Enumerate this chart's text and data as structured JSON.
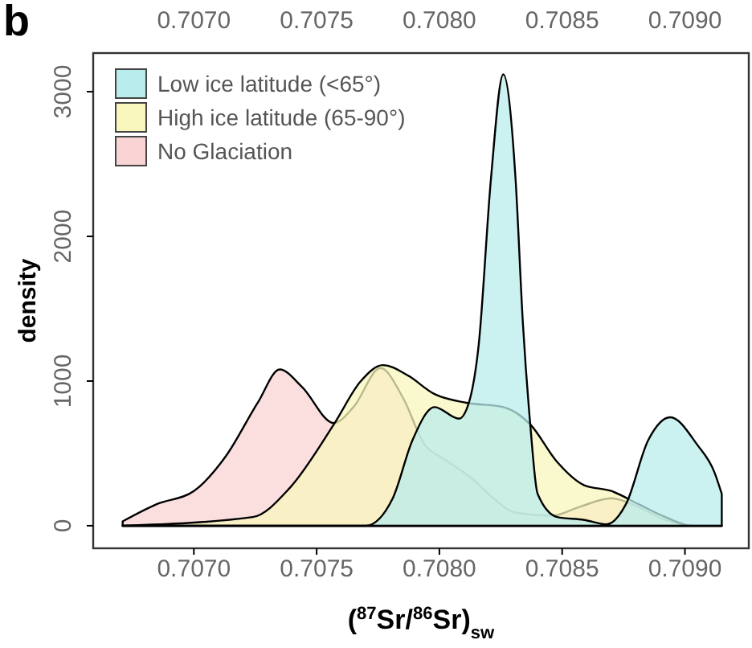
{
  "chart_data": {
    "type": "area",
    "xlabel": "($^{87}$Sr/$^{86}$Sr)$_{sw}$",
    "ylabel": "density",
    "annotations": [
      "b"
    ],
    "xlim": [
      0.70659,
      0.70926
    ],
    "xticks": [
      {
        "value": 0.707,
        "label": "0.7070"
      },
      {
        "value": 0.7075,
        "label": "0.7075"
      },
      {
        "value": 0.708,
        "label": "0.7080"
      },
      {
        "value": 0.7085,
        "label": "0.7085"
      },
      {
        "value": 0.709,
        "label": "0.7090"
      }
    ],
    "x2lim": [
      0.70659,
      0.70926
    ],
    "x2ticks": [
      {
        "value": 0.707,
        "label": "0.7070"
      },
      {
        "value": 0.7075,
        "label": "0.7075"
      },
      {
        "value": 0.708,
        "label": "0.7080"
      },
      {
        "value": 0.7085,
        "label": "0.7085"
      },
      {
        "value": 0.709,
        "label": "0.7090"
      }
    ],
    "ylim": [
      -156,
      3267
    ],
    "yticks": [
      0,
      1000,
      2000,
      3000
    ],
    "legend": "top left",
    "grid": false,
    "series": [
      {
        "name": "Low ice latitude (<65°)",
        "color": "#b9ecec",
        "x": [
          0.70671,
          0.7077,
          0.70781,
          0.70789,
          0.70798,
          0.70808,
          0.70812,
          0.70816,
          0.70821,
          0.70826,
          0.70831,
          0.70834,
          0.70837,
          0.7084,
          0.70848,
          0.70859,
          0.70868,
          0.70876,
          0.70885,
          0.70894,
          0.70905,
          0.70912,
          0.70915
        ],
        "values": [
          0,
          0,
          190,
          590,
          820,
          740,
          850,
          1250,
          2400,
          3120,
          2400,
          1400,
          700,
          220,
          60,
          40,
          10,
          150,
          590,
          750,
          560,
          370,
          220
        ]
      },
      {
        "name": "High ice latitude (65-90°)",
        "color": "#f8f6bc",
        "x": [
          0.70671,
          0.70724,
          0.70739,
          0.70757,
          0.70768,
          0.70777,
          0.70787,
          0.70798,
          0.70811,
          0.70826,
          0.70837,
          0.70848,
          0.70859,
          0.7087,
          0.70881,
          0.70892,
          0.70903,
          0.70915
        ],
        "values": [
          0,
          60,
          260,
          700,
          1000,
          1110,
          1040,
          910,
          850,
          820,
          700,
          440,
          280,
          240,
          150,
          60,
          0,
          0
        ]
      },
      {
        "name": "No Glaciation",
        "color": "#fad4d4",
        "x": [
          0.70671,
          0.70685,
          0.707,
          0.70713,
          0.70726,
          0.70735,
          0.70744,
          0.70757,
          0.70765,
          0.70776,
          0.70785,
          0.70794,
          0.70802,
          0.70813,
          0.70822,
          0.70831,
          0.70846,
          0.70857,
          0.7087,
          0.70881,
          0.70892,
          0.70903,
          0.70915
        ],
        "values": [
          30,
          150,
          240,
          480,
          850,
          1080,
          960,
          710,
          820,
          1090,
          890,
          560,
          460,
          330,
          190,
          90,
          70,
          130,
          190,
          130,
          40,
          0,
          0
        ]
      }
    ]
  }
}
